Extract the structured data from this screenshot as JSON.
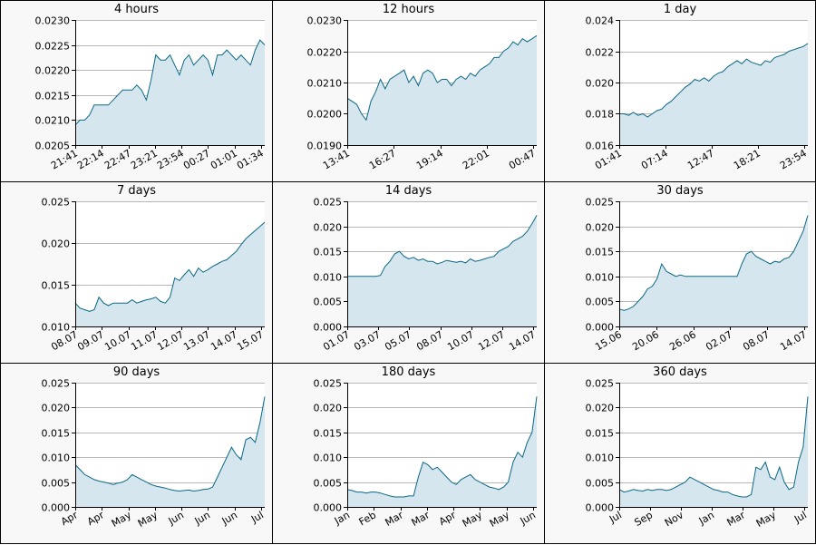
{
  "colors": {
    "line": "#0b6885",
    "fill": "#d6e6ee",
    "grid": "#b8b8b8",
    "axis": "#000000",
    "panel_bg": "#f8f8f8",
    "plot_bg": "#ffffff"
  },
  "chart_data": [
    {
      "type": "area",
      "title": "4 hours",
      "ylim": [
        0.0205,
        0.023
      ],
      "yticks": [
        "0.0205",
        "0.0210",
        "0.0215",
        "0.0220",
        "0.0225",
        "0.0230"
      ],
      "xticks": [
        "21:41",
        "22:14",
        "22:47",
        "23:21",
        "23:54",
        "00:27",
        "01:01",
        "01:34"
      ],
      "x": [
        0,
        1,
        2,
        3,
        4,
        5,
        6,
        7,
        8,
        9,
        10,
        11,
        12,
        13,
        14,
        15,
        16,
        17,
        18,
        19,
        20,
        21,
        22,
        23,
        24,
        25,
        26,
        27,
        28,
        29,
        30,
        31,
        32,
        33,
        34,
        35,
        36,
        37,
        38,
        39,
        40
      ],
      "values": [
        0.0209,
        0.021,
        0.021,
        0.0211,
        0.0213,
        0.0213,
        0.0213,
        0.0213,
        0.0214,
        0.0215,
        0.0216,
        0.0216,
        0.0216,
        0.0217,
        0.0216,
        0.0214,
        0.0218,
        0.0223,
        0.0222,
        0.0222,
        0.0223,
        0.0221,
        0.0219,
        0.0222,
        0.0223,
        0.0221,
        0.0222,
        0.0223,
        0.0222,
        0.0219,
        0.0223,
        0.0223,
        0.0224,
        0.0223,
        0.0222,
        0.0223,
        0.0222,
        0.0221,
        0.0224,
        0.0226,
        0.0225
      ]
    },
    {
      "type": "area",
      "title": "12 hours",
      "ylim": [
        0.019,
        0.023
      ],
      "yticks": [
        "0.0190",
        "0.0200",
        "0.0210",
        "0.0220",
        "0.0230"
      ],
      "xticks": [
        "13:41",
        "16:27",
        "19:14",
        "22:01",
        "00:47"
      ],
      "x": [
        0,
        1,
        2,
        3,
        4,
        5,
        6,
        7,
        8,
        9,
        10,
        11,
        12,
        13,
        14,
        15,
        16,
        17,
        18,
        19,
        20,
        21,
        22,
        23,
        24,
        25,
        26,
        27,
        28,
        29,
        30,
        31,
        32,
        33,
        34,
        35,
        36,
        37,
        38,
        39,
        40
      ],
      "values": [
        0.0205,
        0.0204,
        0.0203,
        0.02,
        0.0198,
        0.0204,
        0.0207,
        0.0211,
        0.0208,
        0.0211,
        0.0212,
        0.0213,
        0.0214,
        0.021,
        0.0212,
        0.0209,
        0.0213,
        0.0214,
        0.0213,
        0.021,
        0.0211,
        0.0211,
        0.0209,
        0.0211,
        0.0212,
        0.0211,
        0.0213,
        0.0212,
        0.0214,
        0.0215,
        0.0216,
        0.0218,
        0.0218,
        0.022,
        0.0221,
        0.0223,
        0.0222,
        0.0224,
        0.0223,
        0.0224,
        0.0225
      ]
    },
    {
      "type": "area",
      "title": "1 day",
      "ylim": [
        0.016,
        0.024
      ],
      "yticks": [
        "0.016",
        "0.018",
        "0.020",
        "0.022",
        "0.024"
      ],
      "xticks": [
        "01:41",
        "07:14",
        "12:47",
        "18:21",
        "23:54"
      ],
      "x": [
        0,
        1,
        2,
        3,
        4,
        5,
        6,
        7,
        8,
        9,
        10,
        11,
        12,
        13,
        14,
        15,
        16,
        17,
        18,
        19,
        20,
        21,
        22,
        23,
        24,
        25,
        26,
        27,
        28,
        29,
        30,
        31,
        32,
        33,
        34,
        35,
        36,
        37,
        38,
        39,
        40
      ],
      "values": [
        0.018,
        0.018,
        0.0179,
        0.0181,
        0.0179,
        0.018,
        0.0178,
        0.018,
        0.0182,
        0.0183,
        0.0186,
        0.0188,
        0.0191,
        0.0194,
        0.0197,
        0.0199,
        0.0202,
        0.0201,
        0.0203,
        0.0201,
        0.0204,
        0.0206,
        0.0207,
        0.021,
        0.0212,
        0.0214,
        0.0212,
        0.0215,
        0.0213,
        0.0212,
        0.0211,
        0.0214,
        0.0213,
        0.0216,
        0.0217,
        0.0218,
        0.022,
        0.0221,
        0.0222,
        0.0223,
        0.0225
      ]
    },
    {
      "type": "area",
      "title": "7 days",
      "ylim": [
        0.01,
        0.025
      ],
      "yticks": [
        "0.010",
        "0.015",
        "0.020",
        "0.025"
      ],
      "xticks": [
        "08.07",
        "09.07",
        "10.07",
        "11.07",
        "12.07",
        "13.07",
        "14.07",
        "15.07"
      ],
      "x": [
        0,
        1,
        2,
        3,
        4,
        5,
        6,
        7,
        8,
        9,
        10,
        11,
        12,
        13,
        14,
        15,
        16,
        17,
        18,
        19,
        20,
        21,
        22,
        23,
        24,
        25,
        26,
        27,
        28,
        29,
        30,
        31,
        32,
        33,
        34,
        35,
        36,
        37,
        38,
        39,
        40
      ],
      "values": [
        0.0128,
        0.0122,
        0.012,
        0.0118,
        0.012,
        0.0135,
        0.0128,
        0.0125,
        0.0128,
        0.0128,
        0.0128,
        0.0128,
        0.0132,
        0.0128,
        0.013,
        0.0132,
        0.0133,
        0.0135,
        0.013,
        0.0128,
        0.0135,
        0.0158,
        0.0155,
        0.0162,
        0.0168,
        0.016,
        0.017,
        0.0165,
        0.0168,
        0.0172,
        0.0175,
        0.0178,
        0.018,
        0.0185,
        0.019,
        0.0198,
        0.0205,
        0.021,
        0.0215,
        0.022,
        0.0225
      ]
    },
    {
      "type": "area",
      "title": "14 days",
      "ylim": [
        0,
        0.025
      ],
      "yticks": [
        "0.000",
        "0.005",
        "0.010",
        "0.015",
        "0.020",
        "0.025"
      ],
      "xticks": [
        "01.07",
        "03.07",
        "05.07",
        "08.07",
        "10.07",
        "12.07",
        "14.07"
      ],
      "x": [
        0,
        1,
        2,
        3,
        4,
        5,
        6,
        7,
        8,
        9,
        10,
        11,
        12,
        13,
        14,
        15,
        16,
        17,
        18,
        19,
        20,
        21,
        22,
        23,
        24,
        25,
        26,
        27,
        28,
        29,
        30,
        31,
        32,
        33,
        34,
        35,
        36,
        37,
        38,
        39,
        40
      ],
      "values": [
        0.01,
        0.01,
        0.01,
        0.01,
        0.01,
        0.01,
        0.01,
        0.0102,
        0.012,
        0.013,
        0.0145,
        0.015,
        0.014,
        0.0135,
        0.0138,
        0.0132,
        0.0135,
        0.013,
        0.013,
        0.0125,
        0.0128,
        0.0132,
        0.013,
        0.0128,
        0.013,
        0.0127,
        0.0135,
        0.013,
        0.0132,
        0.0135,
        0.0138,
        0.014,
        0.015,
        0.0155,
        0.016,
        0.017,
        0.0175,
        0.018,
        0.019,
        0.0205,
        0.0222
      ]
    },
    {
      "type": "area",
      "title": "30 days",
      "ylim": [
        0,
        0.025
      ],
      "yticks": [
        "0.000",
        "0.005",
        "0.010",
        "0.015",
        "0.020",
        "0.025"
      ],
      "xticks": [
        "15.06",
        "20.06",
        "26.06",
        "02.07",
        "08.07",
        "14.07"
      ],
      "x": [
        0,
        1,
        2,
        3,
        4,
        5,
        6,
        7,
        8,
        9,
        10,
        11,
        12,
        13,
        14,
        15,
        16,
        17,
        18,
        19,
        20,
        21,
        22,
        23,
        24,
        25,
        26,
        27,
        28,
        29,
        30,
        31,
        32,
        33,
        34,
        35,
        36,
        37,
        38,
        39,
        40
      ],
      "values": [
        0.0035,
        0.0032,
        0.0035,
        0.004,
        0.005,
        0.006,
        0.0075,
        0.008,
        0.0095,
        0.0125,
        0.011,
        0.0105,
        0.01,
        0.0103,
        0.01,
        0.01,
        0.01,
        0.01,
        0.01,
        0.01,
        0.01,
        0.01,
        0.01,
        0.01,
        0.01,
        0.01,
        0.0125,
        0.0145,
        0.015,
        0.014,
        0.0135,
        0.013,
        0.0125,
        0.013,
        0.0128,
        0.0135,
        0.0138,
        0.015,
        0.017,
        0.019,
        0.0222
      ]
    },
    {
      "type": "area",
      "title": "90 days",
      "ylim": [
        0,
        0.025
      ],
      "yticks": [
        "0.000",
        "0.005",
        "0.010",
        "0.015",
        "0.020",
        "0.025"
      ],
      "xticks": [
        "Apr",
        "Apr",
        "May",
        "May",
        "Jun",
        "Jun",
        "Jun",
        "Jul"
      ],
      "x": [
        0,
        1,
        2,
        3,
        4,
        5,
        6,
        7,
        8,
        9,
        10,
        11,
        12,
        13,
        14,
        15,
        16,
        17,
        18,
        19,
        20,
        21,
        22,
        23,
        24,
        25,
        26,
        27,
        28,
        29,
        30,
        31,
        32,
        33,
        34,
        35,
        36,
        37,
        38,
        39,
        40
      ],
      "values": [
        0.0085,
        0.0075,
        0.0065,
        0.006,
        0.0055,
        0.0052,
        0.005,
        0.0048,
        0.0045,
        0.0048,
        0.005,
        0.0055,
        0.0065,
        0.006,
        0.0055,
        0.005,
        0.0045,
        0.0042,
        0.004,
        0.0038,
        0.0035,
        0.0033,
        0.0032,
        0.0033,
        0.0034,
        0.0032,
        0.0033,
        0.0035,
        0.0036,
        0.004,
        0.006,
        0.008,
        0.01,
        0.012,
        0.0105,
        0.0095,
        0.0135,
        0.014,
        0.013,
        0.017,
        0.0222
      ]
    },
    {
      "type": "area",
      "title": "180 days",
      "ylim": [
        0,
        0.025
      ],
      "yticks": [
        "0.000",
        "0.005",
        "0.010",
        "0.015",
        "0.020",
        "0.025"
      ],
      "xticks": [
        "Jan",
        "Feb",
        "Mar",
        "Mar",
        "Apr",
        "May",
        "May",
        "Jun"
      ],
      "x": [
        0,
        1,
        2,
        3,
        4,
        5,
        6,
        7,
        8,
        9,
        10,
        11,
        12,
        13,
        14,
        15,
        16,
        17,
        18,
        19,
        20,
        21,
        22,
        23,
        24,
        25,
        26,
        27,
        28,
        29,
        30,
        31,
        32,
        33,
        34,
        35,
        36,
        37,
        38,
        39,
        40
      ],
      "values": [
        0.0035,
        0.0033,
        0.003,
        0.003,
        0.0028,
        0.003,
        0.003,
        0.0028,
        0.0025,
        0.0022,
        0.002,
        0.002,
        0.002,
        0.0022,
        0.0022,
        0.006,
        0.009,
        0.0085,
        0.0075,
        0.008,
        0.007,
        0.006,
        0.005,
        0.0045,
        0.0055,
        0.006,
        0.0065,
        0.0055,
        0.005,
        0.0045,
        0.004,
        0.0038,
        0.0035,
        0.004,
        0.005,
        0.009,
        0.011,
        0.01,
        0.013,
        0.015,
        0.0222
      ]
    },
    {
      "type": "area",
      "title": "360 days",
      "ylim": [
        0,
        0.025
      ],
      "yticks": [
        "0.000",
        "0.005",
        "0.010",
        "0.015",
        "0.020",
        "0.025"
      ],
      "xticks": [
        "Jul",
        "Sep",
        "Nov",
        "Jan",
        "Mar",
        "May",
        "Jul"
      ],
      "x": [
        0,
        1,
        2,
        3,
        4,
        5,
        6,
        7,
        8,
        9,
        10,
        11,
        12,
        13,
        14,
        15,
        16,
        17,
        18,
        19,
        20,
        21,
        22,
        23,
        24,
        25,
        26,
        27,
        28,
        29,
        30,
        31,
        32,
        33,
        34,
        35,
        36,
        37,
        38,
        39,
        40
      ],
      "values": [
        0.0035,
        0.003,
        0.0032,
        0.0035,
        0.0033,
        0.0032,
        0.0035,
        0.0033,
        0.0035,
        0.0035,
        0.0033,
        0.0035,
        0.004,
        0.0045,
        0.005,
        0.006,
        0.0055,
        0.005,
        0.0045,
        0.004,
        0.0035,
        0.0033,
        0.003,
        0.003,
        0.0025,
        0.0022,
        0.002,
        0.002,
        0.0025,
        0.008,
        0.0075,
        0.009,
        0.006,
        0.0055,
        0.008,
        0.005,
        0.0035,
        0.004,
        0.009,
        0.012,
        0.0222
      ]
    }
  ]
}
